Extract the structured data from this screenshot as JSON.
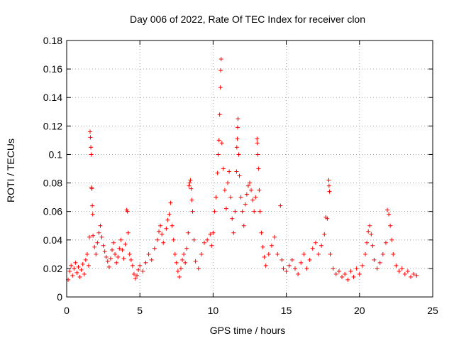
{
  "chart_data": {
    "type": "scatter",
    "title": "Day 006 of 2022, Rate Of TEC Index for receiver clon",
    "xlabel": "GPS time / hours",
    "ylabel": "ROTI / TECUs",
    "xlim": [
      0,
      25
    ],
    "ylim": [
      0,
      0.18
    ],
    "xticks": [
      0,
      5,
      10,
      15,
      20,
      25
    ],
    "yticks": [
      0,
      0.02,
      0.04,
      0.06,
      0.08,
      0.1,
      0.12,
      0.14,
      0.16,
      0.18
    ],
    "xtick_labels": [
      "0",
      "5",
      "10",
      "15",
      "20",
      "25"
    ],
    "ytick_labels": [
      "0",
      "0.02",
      "0.04",
      "0.06",
      "0.08",
      "0.1",
      "0.12",
      "0.14",
      "0.16",
      "0.18"
    ],
    "grid": true,
    "marker": "plus",
    "color": "#ff0000",
    "points": [
      [
        0.1,
        0.012
      ],
      [
        0.2,
        0.018
      ],
      [
        0.3,
        0.022
      ],
      [
        0.4,
        0.015
      ],
      [
        0.5,
        0.02
      ],
      [
        0.6,
        0.024
      ],
      [
        0.7,
        0.017
      ],
      [
        0.8,
        0.021
      ],
      [
        0.9,
        0.014
      ],
      [
        1.0,
        0.019
      ],
      [
        1.1,
        0.023
      ],
      [
        1.2,
        0.016
      ],
      [
        1.3,
        0.026
      ],
      [
        1.4,
        0.03
      ],
      [
        1.5,
        0.022
      ],
      [
        1.55,
        0.042
      ],
      [
        1.6,
        0.116
      ],
      [
        1.62,
        0.112
      ],
      [
        1.65,
        0.105
      ],
      [
        1.68,
        0.1
      ],
      [
        1.7,
        0.077
      ],
      [
        1.72,
        0.076
      ],
      [
        1.75,
        0.064
      ],
      [
        1.78,
        0.058
      ],
      [
        1.8,
        0.043
      ],
      [
        1.9,
        0.035
      ],
      [
        2.0,
        0.03
      ],
      [
        2.1,
        0.038
      ],
      [
        2.2,
        0.045
      ],
      [
        2.3,
        0.05
      ],
      [
        2.4,
        0.042
      ],
      [
        2.5,
        0.036
      ],
      [
        2.6,
        0.032
      ],
      [
        2.7,
        0.028
      ],
      [
        2.8,
        0.025
      ],
      [
        2.9,
        0.021
      ],
      [
        3.0,
        0.027
      ],
      [
        3.1,
        0.033
      ],
      [
        3.2,
        0.038
      ],
      [
        3.3,
        0.03
      ],
      [
        3.4,
        0.024
      ],
      [
        3.5,
        0.028
      ],
      [
        3.6,
        0.034
      ],
      [
        3.7,
        0.04
      ],
      [
        3.8,
        0.033
      ],
      [
        3.9,
        0.027
      ],
      [
        4.0,
        0.037
      ],
      [
        4.1,
        0.061
      ],
      [
        4.15,
        0.06
      ],
      [
        4.2,
        0.045
      ],
      [
        4.3,
        0.03
      ],
      [
        4.4,
        0.026
      ],
      [
        4.5,
        0.022
      ],
      [
        4.6,
        0.016
      ],
      [
        4.7,
        0.013
      ],
      [
        4.8,
        0.015
      ],
      [
        4.9,
        0.019
      ],
      [
        5.0,
        0.022
      ],
      [
        5.2,
        0.018
      ],
      [
        5.4,
        0.024
      ],
      [
        5.6,
        0.03
      ],
      [
        5.8,
        0.026
      ],
      [
        6.0,
        0.034
      ],
      [
        6.2,
        0.04
      ],
      [
        6.3,
        0.046
      ],
      [
        6.4,
        0.05
      ],
      [
        6.5,
        0.044
      ],
      [
        6.6,
        0.038
      ],
      [
        6.8,
        0.048
      ],
      [
        6.9,
        0.054
      ],
      [
        7.0,
        0.058
      ],
      [
        7.1,
        0.066
      ],
      [
        7.2,
        0.05
      ],
      [
        7.3,
        0.04
      ],
      [
        7.4,
        0.03
      ],
      [
        7.5,
        0.024
      ],
      [
        7.6,
        0.018
      ],
      [
        7.7,
        0.014
      ],
      [
        7.8,
        0.02
      ],
      [
        7.9,
        0.026
      ],
      [
        8.0,
        0.03
      ],
      [
        8.1,
        0.024
      ],
      [
        8.2,
        0.034
      ],
      [
        8.3,
        0.045
      ],
      [
        8.35,
        0.078
      ],
      [
        8.4,
        0.08
      ],
      [
        8.45,
        0.082
      ],
      [
        8.5,
        0.076
      ],
      [
        8.55,
        0.068
      ],
      [
        8.6,
        0.06
      ],
      [
        8.7,
        0.04
      ],
      [
        8.8,
        0.025
      ],
      [
        9.0,
        0.02
      ],
      [
        9.2,
        0.03
      ],
      [
        9.4,
        0.038
      ],
      [
        9.6,
        0.04
      ],
      [
        9.8,
        0.044
      ],
      [
        9.9,
        0.036
      ],
      [
        10.0,
        0.045
      ],
      [
        10.1,
        0.06
      ],
      [
        10.2,
        0.07
      ],
      [
        10.3,
        0.087
      ],
      [
        10.35,
        0.1
      ],
      [
        10.4,
        0.11
      ],
      [
        10.45,
        0.128
      ],
      [
        10.5,
        0.147
      ],
      [
        10.52,
        0.159
      ],
      [
        10.55,
        0.167
      ],
      [
        10.6,
        0.108
      ],
      [
        10.7,
        0.09
      ],
      [
        10.8,
        0.075
      ],
      [
        10.9,
        0.062
      ],
      [
        11.0,
        0.08
      ],
      [
        11.1,
        0.088
      ],
      [
        11.2,
        0.07
      ],
      [
        11.3,
        0.055
      ],
      [
        11.4,
        0.045
      ],
      [
        11.5,
        0.06
      ],
      [
        11.6,
        0.088
      ],
      [
        11.62,
        0.105
      ],
      [
        11.65,
        0.111
      ],
      [
        11.68,
        0.119
      ],
      [
        11.7,
        0.125
      ],
      [
        11.75,
        0.1
      ],
      [
        11.8,
        0.085
      ],
      [
        11.9,
        0.07
      ],
      [
        12.0,
        0.06
      ],
      [
        12.1,
        0.05
      ],
      [
        12.2,
        0.065
      ],
      [
        12.3,
        0.072
      ],
      [
        12.4,
        0.078
      ],
      [
        12.5,
        0.08
      ],
      [
        12.6,
        0.075
      ],
      [
        12.7,
        0.068
      ],
      [
        12.8,
        0.06
      ],
      [
        12.9,
        0.07
      ],
      [
        13.0,
        0.111
      ],
      [
        13.02,
        0.108
      ],
      [
        13.05,
        0.1
      ],
      [
        13.1,
        0.09
      ],
      [
        13.15,
        0.075
      ],
      [
        13.2,
        0.06
      ],
      [
        13.3,
        0.045
      ],
      [
        13.4,
        0.035
      ],
      [
        13.5,
        0.028
      ],
      [
        13.6,
        0.022
      ],
      [
        13.8,
        0.03
      ],
      [
        14.0,
        0.036
      ],
      [
        14.2,
        0.042
      ],
      [
        14.4,
        0.03
      ],
      [
        14.6,
        0.064
      ],
      [
        14.7,
        0.026
      ],
      [
        14.8,
        0.02
      ],
      [
        15.0,
        0.018
      ],
      [
        15.2,
        0.022
      ],
      [
        15.4,
        0.026
      ],
      [
        15.6,
        0.02
      ],
      [
        15.8,
        0.016
      ],
      [
        16.0,
        0.024
      ],
      [
        16.2,
        0.03
      ],
      [
        16.4,
        0.02
      ],
      [
        16.6,
        0.026
      ],
      [
        16.8,
        0.034
      ],
      [
        17.0,
        0.038
      ],
      [
        17.2,
        0.03
      ],
      [
        17.4,
        0.036
      ],
      [
        17.6,
        0.044
      ],
      [
        17.7,
        0.056
      ],
      [
        17.8,
        0.055
      ],
      [
        17.9,
        0.082
      ],
      [
        17.92,
        0.078
      ],
      [
        17.95,
        0.074
      ],
      [
        18.0,
        0.03
      ],
      [
        18.2,
        0.02
      ],
      [
        18.4,
        0.016
      ],
      [
        18.6,
        0.018
      ],
      [
        18.8,
        0.014
      ],
      [
        19.0,
        0.016
      ],
      [
        19.2,
        0.012
      ],
      [
        19.4,
        0.018
      ],
      [
        19.6,
        0.014
      ],
      [
        19.8,
        0.02
      ],
      [
        20.0,
        0.016
      ],
      [
        20.2,
        0.022
      ],
      [
        20.4,
        0.03
      ],
      [
        20.5,
        0.038
      ],
      [
        20.6,
        0.046
      ],
      [
        20.7,
        0.05
      ],
      [
        20.8,
        0.044
      ],
      [
        20.9,
        0.036
      ],
      [
        21.0,
        0.026
      ],
      [
        21.2,
        0.02
      ],
      [
        21.4,
        0.024
      ],
      [
        21.6,
        0.03
      ],
      [
        21.8,
        0.038
      ],
      [
        21.9,
        0.061
      ],
      [
        22.0,
        0.058
      ],
      [
        22.1,
        0.05
      ],
      [
        22.2,
        0.04
      ],
      [
        22.3,
        0.03
      ],
      [
        22.5,
        0.022
      ],
      [
        22.7,
        0.018
      ],
      [
        22.9,
        0.02
      ],
      [
        23.1,
        0.016
      ],
      [
        23.3,
        0.018
      ],
      [
        23.5,
        0.014
      ],
      [
        23.7,
        0.016
      ],
      [
        23.9,
        0.015
      ]
    ]
  }
}
